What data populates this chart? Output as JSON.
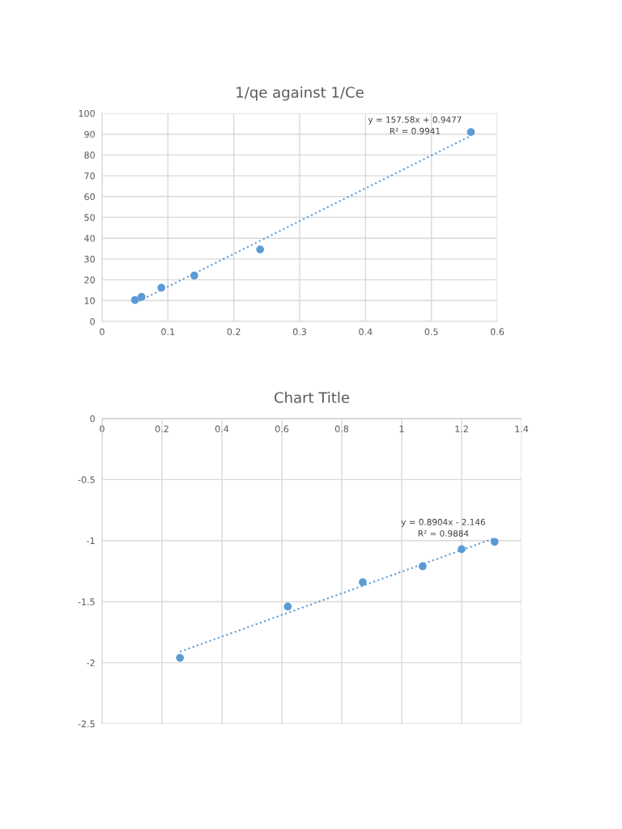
{
  "chart_data": [
    {
      "type": "scatter",
      "title": "1/qe against 1/Ce",
      "xlim": [
        0,
        0.6
      ],
      "ylim": [
        0,
        100
      ],
      "xticks": [
        0,
        0.1,
        0.2,
        0.3,
        0.4,
        0.5,
        0.6
      ],
      "yticks": [
        0,
        10,
        20,
        30,
        40,
        50,
        60,
        70,
        80,
        90,
        100
      ],
      "grid": true,
      "series": [
        {
          "color": "#5b9bd5",
          "marker": "circle",
          "x": [
            0.05,
            0.06,
            0.09,
            0.14,
            0.24,
            0.56
          ],
          "values": [
            10.3,
            11.8,
            16.2,
            22,
            34.6,
            91
          ]
        },
        {
          "type": "line",
          "color": "#5b9bd5",
          "line_style": "dotted",
          "marker": "none",
          "x": [
            0.05,
            0.56
          ],
          "values": [
            8.8,
            89.2
          ]
        }
      ],
      "annotations": [
        "y = 157.58x + 0.9477\nR² = 0.9941"
      ]
    },
    {
      "type": "scatter",
      "title": "Chart Title",
      "xlim": [
        0,
        1.4
      ],
      "ylim": [
        -2.5,
        0
      ],
      "xticks": [
        0,
        0.2,
        0.4,
        0.6,
        0.8,
        1,
        1.2,
        1.4
      ],
      "yticks": [
        -2.5,
        -2,
        -1.5,
        -1,
        -0.5,
        0
      ],
      "grid": true,
      "series": [
        {
          "color": "#5b9bd5",
          "marker": "circle",
          "x": [
            0.26,
            0.62,
            0.87,
            1.07,
            1.2,
            1.31
          ],
          "values": [
            -1.96,
            -1.54,
            -1.34,
            -1.21,
            -1.07,
            -1.01
          ]
        },
        {
          "type": "line",
          "color": "#5b9bd5",
          "line_style": "dotted",
          "marker": "none",
          "x": [
            0.26,
            1.31
          ],
          "values": [
            -1.91,
            -0.98
          ]
        }
      ],
      "annotations": [
        "y = 0.8904x - 2.146\nR² = 0.9884"
      ]
    }
  ]
}
